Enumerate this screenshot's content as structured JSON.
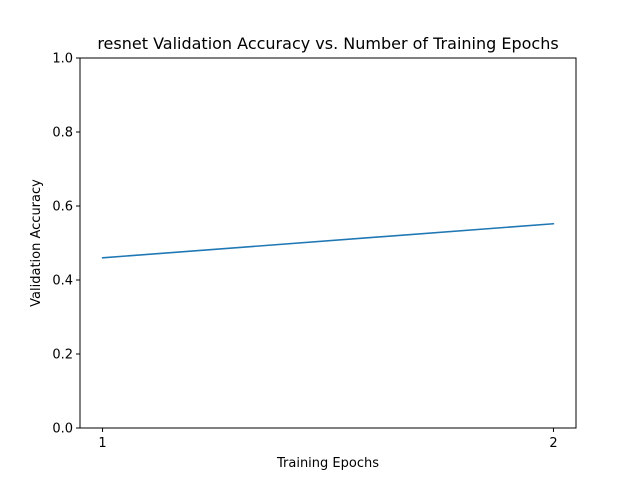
{
  "chart_data": {
    "type": "line",
    "title": "resnet Validation Accuracy vs. Number of Training Epochs",
    "xlabel": "Training Epochs",
    "ylabel": "Validation Accuracy",
    "x": [
      1,
      2
    ],
    "xticks": [
      "1",
      "2"
    ],
    "yticks": [
      "0.0",
      "0.2",
      "0.4",
      "0.6",
      "0.8",
      "1.0"
    ],
    "ylim": [
      0,
      1
    ],
    "xlim": [
      0.95,
      2.05
    ],
    "grid": false,
    "series": [
      {
        "values": [
          0.46,
          0.552
        ],
        "color": "#1f77b4"
      }
    ]
  }
}
